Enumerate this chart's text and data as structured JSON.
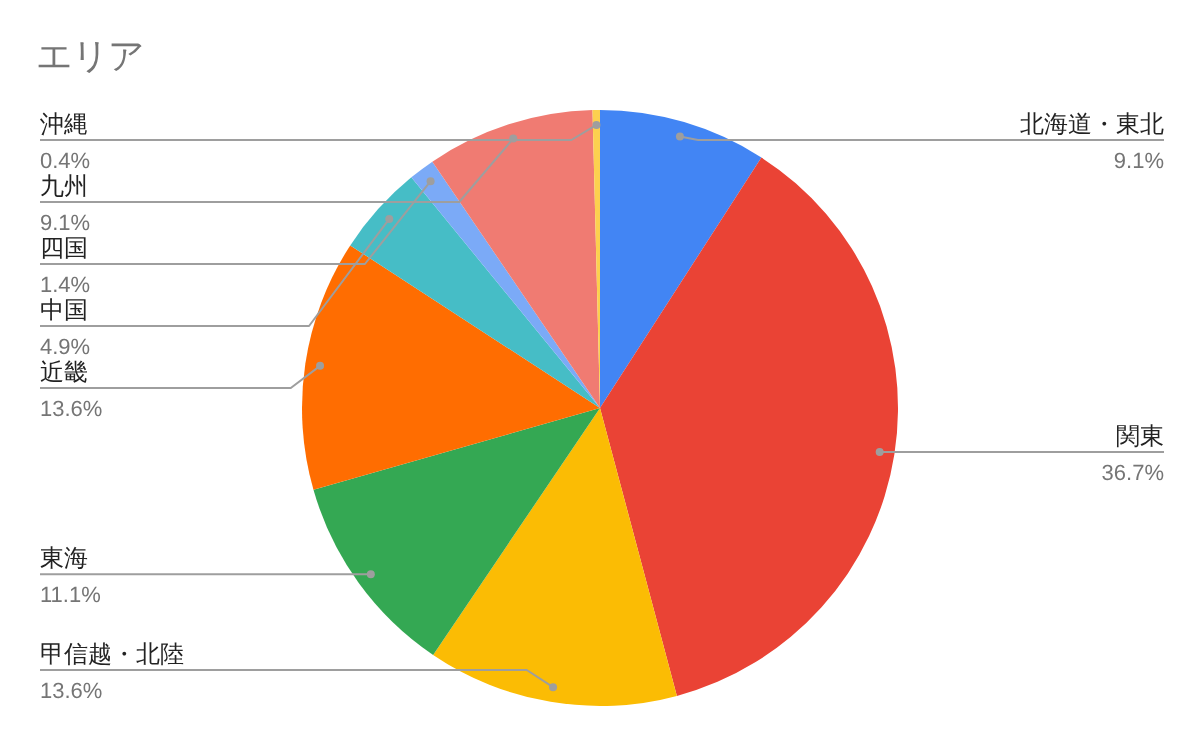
{
  "chart_data": {
    "type": "pie",
    "title": "エリア",
    "categories": [
      "北海道・東北",
      "関東",
      "甲信越・北陸",
      "東海",
      "近畿",
      "中国",
      "四国",
      "九州",
      "沖縄"
    ],
    "values": [
      9.1,
      36.7,
      13.6,
      11.1,
      13.6,
      4.9,
      1.4,
      9.1,
      0.4
    ],
    "colors": [
      "#4285f4",
      "#ea4335",
      "#fbbc04",
      "#34a853",
      "#ff6d01",
      "#46bdc6",
      "#7baaf7",
      "#f07b72",
      "#fcd04f"
    ],
    "value_labels": [
      "9.1%",
      "36.7%",
      "13.6%",
      "11.1%",
      "13.6%",
      "4.9%",
      "1.4%",
      "9.1%",
      "0.4%"
    ]
  }
}
